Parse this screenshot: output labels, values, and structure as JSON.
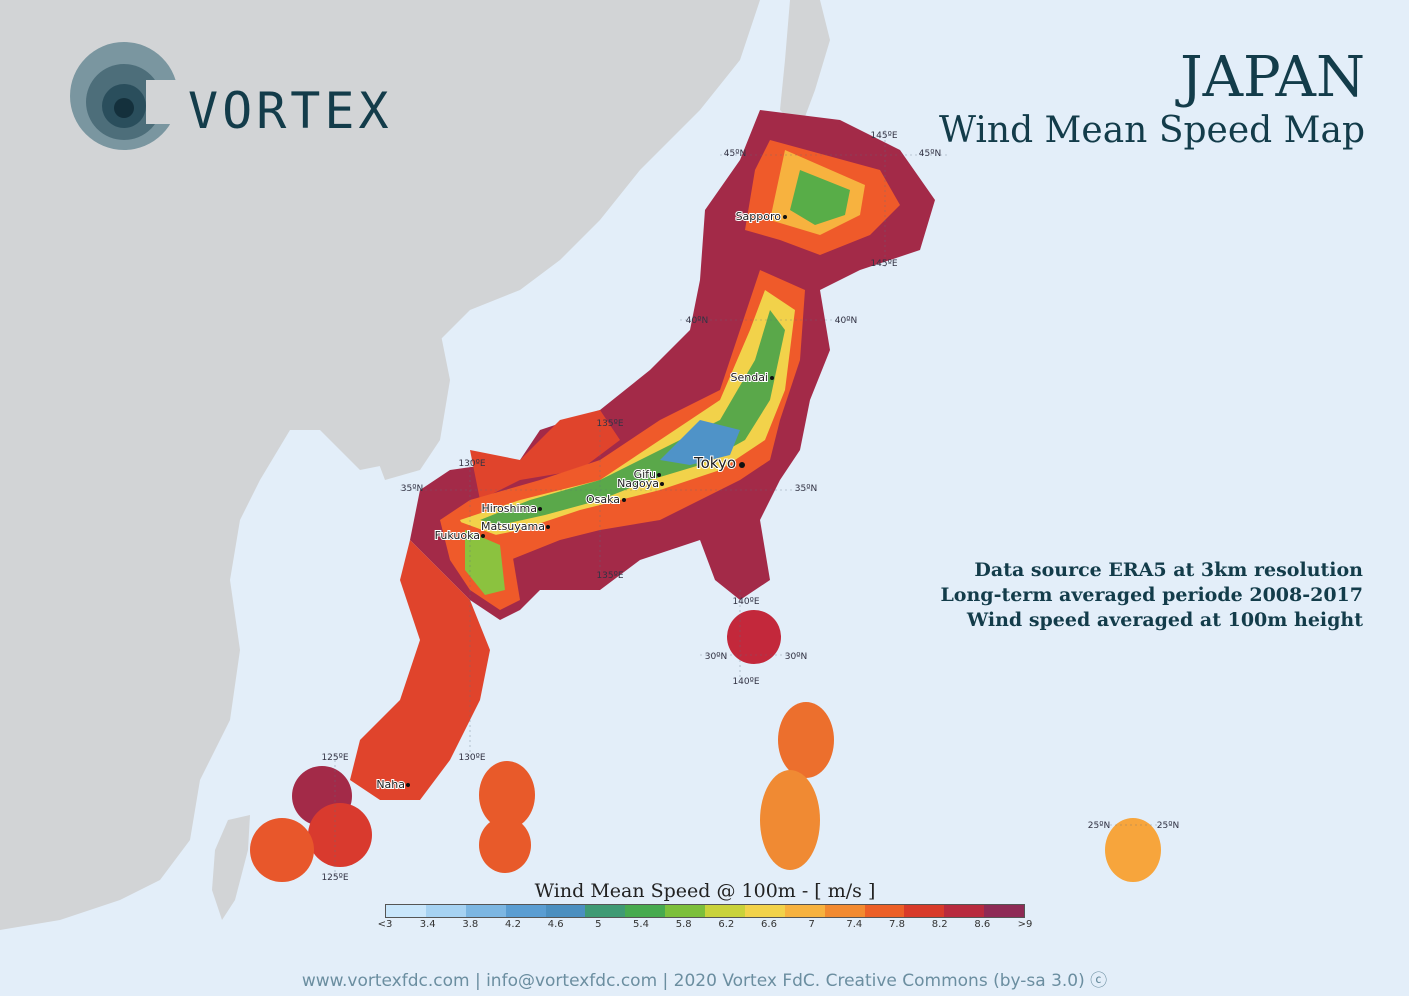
{
  "brand": {
    "name": "VORTEX"
  },
  "title": {
    "country": "JAPAN",
    "subtitle": "Wind Mean Speed Map"
  },
  "info": {
    "line1": "Data source ERA5 at 3km resolution",
    "line2": "Long-term averaged periode 2008-2017",
    "line3": "Wind speed averaged at 100m height"
  },
  "cities": [
    {
      "name": "Sapporo"
    },
    {
      "name": "Sendai"
    },
    {
      "name": "Tokyo"
    },
    {
      "name": "Gifu"
    },
    {
      "name": "Nagoya"
    },
    {
      "name": "Osaka"
    },
    {
      "name": "Hiroshima"
    },
    {
      "name": "Matsuyama"
    },
    {
      "name": "Fukuoka"
    },
    {
      "name": "Naha"
    }
  ],
  "grid_labels": [
    "45ºN",
    "45ºN",
    "145ºE",
    "145ºE",
    "40ºN",
    "40ºN",
    "135ºE",
    "135ºE",
    "130ºE",
    "130ºE",
    "35ºN",
    "35ºN",
    "30ºN",
    "30ºN",
    "140ºE",
    "140ºE",
    "125ºE",
    "125ºE",
    "25ºN",
    "25ºN"
  ],
  "legend": {
    "title": "Wind Mean Speed @ 100m - [ m/s ]",
    "ticks": [
      "<3",
      "3.4",
      "3.8",
      "4.2",
      "4.6",
      "5",
      "5.4",
      "5.8",
      "6.2",
      "6.6",
      "7",
      "7.4",
      "7.8",
      "8.2",
      "8.6",
      ">9"
    ],
    "colors": [
      "#c9e6fb",
      "#a6d2f2",
      "#7cb6e2",
      "#5a9dd2",
      "#4b8fc0",
      "#3f9a74",
      "#47aa4f",
      "#7cbf3b",
      "#c9d23a",
      "#f2d24a",
      "#f7b23f",
      "#f28a30",
      "#ec5f27",
      "#d83a2a",
      "#b82a3e",
      "#8e2a55"
    ]
  },
  "footer": {
    "text": "www.vortexfdc.com | info@vortexfdc.com | 2020 Vortex FdC.  Creative Commons (by-sa 3.0)"
  }
}
